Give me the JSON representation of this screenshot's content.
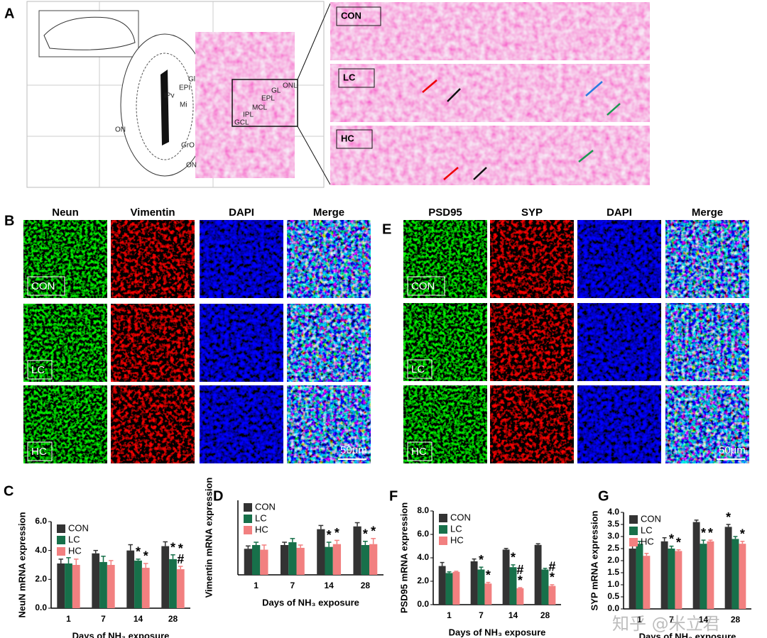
{
  "figure": {
    "panel_a": {
      "label": "A",
      "atlas_labels": [
        "ONL",
        "GL",
        "EPL",
        "MCL",
        "IPL",
        "GCL",
        "EPI",
        "Mi",
        "GrO",
        "IPv",
        "ON",
        "ON",
        "Gl"
      ],
      "crop_labels": [
        "CON",
        "LC",
        "HC"
      ]
    },
    "panel_b": {
      "label": "B",
      "columns": [
        "Neun",
        "Vimentin",
        "DAPI",
        "Merge"
      ],
      "rows": [
        "CON",
        "LC",
        "HC"
      ],
      "scale_bar": "50μm"
    },
    "panel_e": {
      "label": "E",
      "columns": [
        "PSD95",
        "SYP",
        "DAPI",
        "Merge"
      ],
      "rows": [
        "CON",
        "LC",
        "HC"
      ],
      "scale_bar": "50μm"
    },
    "watermark": "知乎 @米立君"
  },
  "chart_data": [
    {
      "type": "bar",
      "panel_label": "C",
      "ylabel": "NeuN mRNA expression",
      "xlabel": "Days of NH₃ exposure",
      "categories": [
        "1",
        "7",
        "14",
        "28"
      ],
      "ylim": [
        0,
        6
      ],
      "yticks": [
        {
          "value": 0,
          "label": "0.0"
        },
        {
          "value": 2,
          "label": "2.0"
        },
        {
          "value": 4,
          "label": "4.0"
        },
        {
          "value": 6,
          "label": "6.0"
        }
      ],
      "series": [
        {
          "name": "CON",
          "color": "#333333",
          "values": [
            3.1,
            3.8,
            4.0,
            4.3
          ],
          "errors": [
            0.3,
            0.2,
            0.4,
            0.3
          ]
        },
        {
          "name": "LC",
          "color": "#17704a",
          "values": [
            3.1,
            3.2,
            3.3,
            3.4
          ],
          "errors": [
            0.4,
            0.4,
            0.1,
            0.3
          ]
        },
        {
          "name": "HC",
          "color": "#f28080",
          "values": [
            3.0,
            3.0,
            2.8,
            2.7
          ],
          "errors": [
            0.4,
            0.3,
            0.3,
            0.2
          ]
        }
      ],
      "annotations": [
        {
          "text": "*",
          "x": "14",
          "series": "LC"
        },
        {
          "text": "*",
          "x": "14",
          "series": "HC"
        },
        {
          "text": "*",
          "x": "28",
          "series": "LC"
        },
        {
          "text": "#",
          "x": "28",
          "series": "HC"
        },
        {
          "text": "*",
          "x": "28",
          "series": "HC"
        }
      ]
    },
    {
      "type": "bar",
      "panel_label": "D",
      "ylabel": "Vimentin mRNA expression",
      "xlabel": "Days of NH₃ exposure",
      "categories": [
        "1",
        "7",
        "14",
        "28"
      ],
      "ylim": [
        0,
        8
      ],
      "series": [
        {
          "name": "CON",
          "color": "#333333",
          "values": [
            2.8,
            3.2,
            4.9,
            5.2
          ],
          "errors": [
            0.3,
            0.3,
            0.4,
            0.4
          ]
        },
        {
          "name": "LC",
          "color": "#17704a",
          "values": [
            3.2,
            3.5,
            3.0,
            3.2
          ],
          "errors": [
            0.3,
            0.4,
            0.5,
            0.4
          ]
        },
        {
          "name": "HC",
          "color": "#f28080",
          "values": [
            2.7,
            2.9,
            3.3,
            3.3
          ],
          "errors": [
            0.5,
            0.3,
            0.4,
            0.6
          ]
        }
      ],
      "annotations": [
        {
          "text": "*",
          "x": "14",
          "series": "LC"
        },
        {
          "text": "*",
          "x": "14",
          "series": "HC"
        },
        {
          "text": "*",
          "x": "28",
          "series": "LC"
        },
        {
          "text": "*",
          "x": "28",
          "series": "HC"
        }
      ]
    },
    {
      "type": "bar",
      "panel_label": "F",
      "ylabel": "PSD95 mRNA expression",
      "xlabel": "Days of NH₃ exposure",
      "categories": [
        "1",
        "7",
        "14",
        "28"
      ],
      "ylim": [
        0,
        8
      ],
      "yticks": [
        {
          "value": 0,
          "label": "0.0"
        },
        {
          "value": 2,
          "label": "2.0"
        },
        {
          "value": 4,
          "label": "4.0"
        },
        {
          "value": 6,
          "label": "6.0"
        },
        {
          "value": 8,
          "label": "8.0"
        }
      ],
      "series": [
        {
          "name": "CON",
          "color": "#333333",
          "values": [
            3.3,
            3.7,
            4.7,
            5.1
          ],
          "errors": [
            0.3,
            0.2,
            0.1,
            0.1
          ]
        },
        {
          "name": "LC",
          "color": "#17704a",
          "values": [
            2.7,
            3.0,
            3.2,
            3.0
          ],
          "errors": [
            0.1,
            0.2,
            0.2,
            0.1
          ]
        },
        {
          "name": "HC",
          "color": "#f28080",
          "values": [
            2.8,
            1.8,
            1.4,
            1.6
          ],
          "errors": [
            0.05,
            0.1,
            0.05,
            0.1
          ]
        }
      ],
      "annotations": [
        {
          "text": "*",
          "x": "7",
          "series": "LC"
        },
        {
          "text": "*",
          "x": "7",
          "series": "HC"
        },
        {
          "text": "*",
          "x": "14",
          "series": "LC"
        },
        {
          "text": "*",
          "x": "14",
          "series": "HC"
        },
        {
          "text": "#",
          "x": "14",
          "series": "HC"
        },
        {
          "text": "*",
          "x": "28",
          "series": "HC"
        },
        {
          "text": "#",
          "x": "28",
          "series": "HC"
        }
      ]
    },
    {
      "type": "bar",
      "panel_label": "G",
      "ylabel": "SYP mRNA expression",
      "xlabel": "Days of NH₃ exposure",
      "categories": [
        "1",
        "7",
        "14",
        "28"
      ],
      "ylim": [
        0,
        4
      ],
      "yticks": [
        {
          "value": 0,
          "label": "0.0"
        },
        {
          "value": 0.5,
          "label": "0.5"
        },
        {
          "value": 1,
          "label": "1.0"
        },
        {
          "value": 1.5,
          "label": "1.5"
        },
        {
          "value": 2,
          "label": "2.0"
        },
        {
          "value": 2.5,
          "label": "2.5"
        },
        {
          "value": 3,
          "label": "3.0"
        },
        {
          "value": 3.5,
          "label": "3.5"
        },
        {
          "value": 4,
          "label": "4.0"
        }
      ],
      "series": [
        {
          "name": "CON",
          "color": "#333333",
          "values": [
            2.5,
            2.8,
            3.6,
            3.4
          ],
          "errors": [
            0.15,
            0.15,
            0.08,
            0.1
          ]
        },
        {
          "name": "LC",
          "color": "#17704a",
          "values": [
            2.7,
            2.5,
            2.7,
            2.9
          ],
          "errors": [
            0.1,
            0.1,
            0.15,
            0.1
          ]
        },
        {
          "name": "HC",
          "color": "#f28080",
          "values": [
            2.2,
            2.4,
            2.8,
            2.7
          ],
          "errors": [
            0.1,
            0.05,
            0.05,
            0.1
          ]
        }
      ],
      "annotations": [
        {
          "text": "*",
          "x": "7",
          "series": "LC"
        },
        {
          "text": "*",
          "x": "7",
          "series": "HC"
        },
        {
          "text": "*",
          "x": "14",
          "series": "LC"
        },
        {
          "text": "*",
          "x": "14",
          "series": "HC"
        },
        {
          "text": "*",
          "x": "28",
          "series": "CON"
        },
        {
          "text": "*",
          "x": "28",
          "series": "HC"
        }
      ]
    }
  ]
}
